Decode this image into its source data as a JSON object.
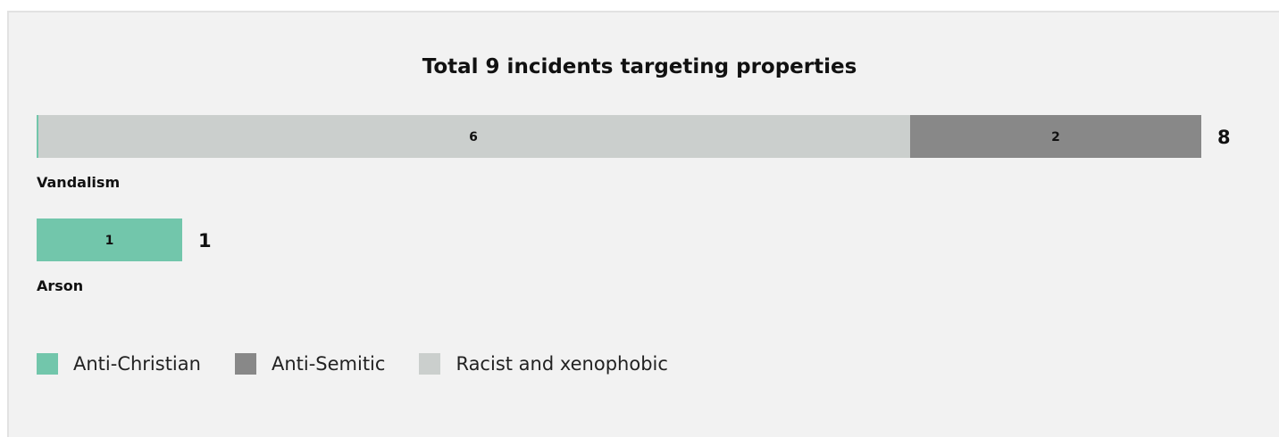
{
  "chart_data": {
    "type": "bar",
    "orientation": "horizontal",
    "stacked": true,
    "title": "Total 9 incidents targeting properties",
    "categories": [
      "Vandalism",
      "Arson"
    ],
    "series": [
      {
        "name": "Anti-Christian",
        "color": "#72c6ab",
        "values": [
          0,
          1
        ]
      },
      {
        "name": "Anti-Semitic",
        "color": "#888888",
        "values": [
          2,
          0
        ]
      },
      {
        "name": "Racist and xenophobic",
        "color": "#cbcfcd",
        "values": [
          6,
          0
        ]
      }
    ],
    "stack_order": [
      "Anti-Christian",
      "Racist and xenophobic",
      "Anti-Semitic"
    ],
    "totals": [
      8,
      1
    ],
    "xlim": [
      0,
      8
    ],
    "grid": false,
    "legend_position": "bottom-left"
  }
}
